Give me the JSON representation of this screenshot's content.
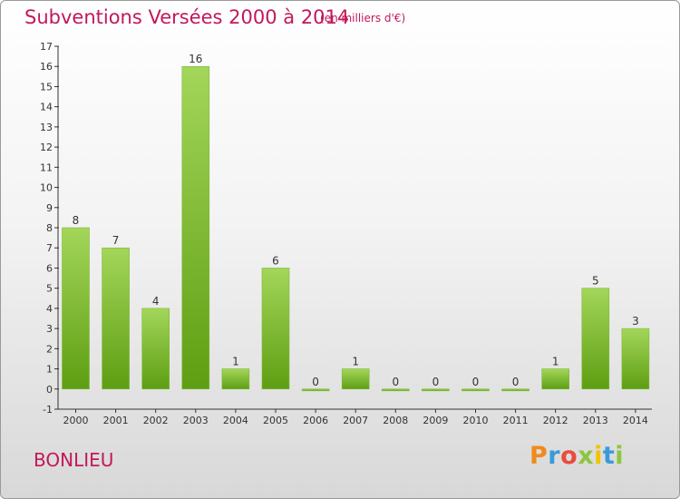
{
  "header": {
    "title": "Subventions Versées 2000 à 2014",
    "unit": "(en milliers d'€)"
  },
  "footer": {
    "city": "BONLIEU",
    "logo_text": "Proxiti",
    "logo_colors": [
      "#f08a1c",
      "#3a9ad9",
      "#e84c3d",
      "#8cc63f",
      "#f2c300",
      "#3a9ad9",
      "#8cc63f"
    ]
  },
  "chart_data": {
    "type": "bar",
    "categories": [
      "2000",
      "2001",
      "2002",
      "2003",
      "2004",
      "2005",
      "2006",
      "2007",
      "2008",
      "2009",
      "2010",
      "2011",
      "2012",
      "2013",
      "2014"
    ],
    "values": [
      8,
      7,
      4,
      16,
      1,
      6,
      0,
      1,
      0,
      0,
      0,
      0,
      1,
      5,
      3
    ],
    "ylim": [
      -1,
      17
    ],
    "yticks": [
      -1,
      0,
      1,
      2,
      3,
      4,
      5,
      6,
      7,
      8,
      9,
      10,
      11,
      12,
      13,
      14,
      15,
      16,
      17
    ],
    "bar_color_light": "#a3d65a",
    "bar_color_dark": "#5e9e12",
    "grid": false
  }
}
